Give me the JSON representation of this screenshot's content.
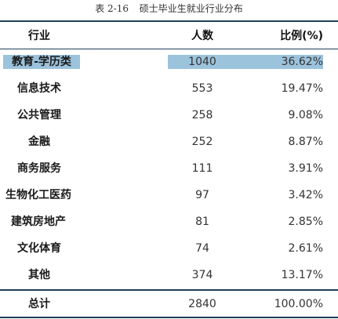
{
  "caption": {
    "number": "表 2-16",
    "text": "硕士毕业生就业行业分布"
  },
  "columns": {
    "industry": "行业",
    "count": "人数",
    "ratio": "比例(%)"
  },
  "rows": [
    {
      "industry": "教育-学历类",
      "count": "1040",
      "ratio": "36.62%",
      "highlight": true
    },
    {
      "industry": "信息技术",
      "count": "553",
      "ratio": "19.47%"
    },
    {
      "industry": "公共管理",
      "count": "258",
      "ratio": "9.08%"
    },
    {
      "industry": "金融",
      "count": "252",
      "ratio": "8.87%"
    },
    {
      "industry": "商务服务",
      "count": "111",
      "ratio": "3.91%"
    },
    {
      "industry": "生物化工医药",
      "count": "97",
      "ratio": "3.42%"
    },
    {
      "industry": "建筑房地产",
      "count": "81",
      "ratio": "2.85%"
    },
    {
      "industry": "文化体育",
      "count": "74",
      "ratio": "2.61%"
    },
    {
      "industry": "其他",
      "count": "374",
      "ratio": "13.17%"
    }
  ],
  "total": {
    "label": "总计",
    "count": "2840",
    "ratio": "100.00%"
  },
  "colors": {
    "rule": "#1e3f5a",
    "highlight": "#9cc3dc"
  }
}
